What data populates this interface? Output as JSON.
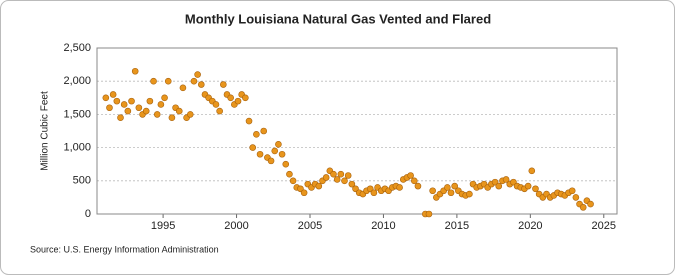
{
  "chart_data": {
    "type": "scatter",
    "title": "Monthly Louisiana Natural Gas Vented and Flared",
    "y_label": "Million Cubic Feet",
    "source": "Source: U.S. Energy Information Administration",
    "color": "#e8951c",
    "grid": true,
    "xlim": [
      1990.5,
      2025.9
    ],
    "xticks": [
      1995,
      2000,
      2005,
      2010,
      2015,
      2020,
      2025
    ],
    "ylim": [
      0,
      2500
    ],
    "yticks": [
      0,
      500,
      {
        "value": 1000,
        "label": "1,000"
      },
      {
        "value": 1500,
        "label": "1,500"
      },
      {
        "value": 2000,
        "label": "2,000"
      },
      {
        "value": 2500,
        "label": "2,500"
      }
    ],
    "x": [
      1991.1,
      1991.35,
      1991.6,
      1991.85,
      1992.1,
      1992.35,
      1992.6,
      1992.85,
      1993.1,
      1993.35,
      1993.6,
      1993.85,
      1994.1,
      1994.35,
      1994.6,
      1994.85,
      1995.1,
      1995.35,
      1995.6,
      1995.85,
      1996.1,
      1996.35,
      1996.6,
      1996.85,
      1997.1,
      1997.35,
      1997.6,
      1997.85,
      1998.1,
      1998.35,
      1998.6,
      1998.85,
      1999.1,
      1999.35,
      1999.6,
      1999.85,
      2000.1,
      2000.35,
      2000.6,
      2000.85,
      2001.1,
      2001.35,
      2001.6,
      2001.85,
      2002.1,
      2002.35,
      2002.6,
      2002.85,
      2003.1,
      2003.35,
      2003.6,
      2003.85,
      2004.1,
      2004.35,
      2004.6,
      2004.85,
      2005.1,
      2005.35,
      2005.6,
      2005.85,
      2006.1,
      2006.35,
      2006.6,
      2006.85,
      2007.1,
      2007.35,
      2007.6,
      2007.85,
      2008.1,
      2008.35,
      2008.6,
      2008.85,
      2009.1,
      2009.35,
      2009.6,
      2009.85,
      2010.1,
      2010.35,
      2010.6,
      2010.85,
      2011.1,
      2011.35,
      2011.6,
      2011.85,
      2012.1,
      2012.35,
      2012.85,
      2013.1,
      2013.35,
      2013.6,
      2013.85,
      2014.1,
      2014.35,
      2014.6,
      2014.85,
      2015.1,
      2015.35,
      2015.6,
      2015.85,
      2016.1,
      2016.35,
      2016.6,
      2016.85,
      2017.1,
      2017.35,
      2017.6,
      2017.85,
      2018.1,
      2018.35,
      2018.6,
      2018.85,
      2019.1,
      2019.35,
      2019.6,
      2019.85,
      2020.1,
      2020.35,
      2020.6,
      2020.85,
      2021.1,
      2021.35,
      2021.6,
      2021.85,
      2022.1,
      2022.35,
      2022.6,
      2022.85,
      2023.1,
      2023.35,
      2023.6,
      2023.85,
      2024.1
    ],
    "values": [
      1750,
      1600,
      1800,
      1700,
      1450,
      1650,
      1550,
      1700,
      2150,
      1600,
      1500,
      1550,
      1700,
      2000,
      1500,
      1650,
      1750,
      2000,
      1450,
      1600,
      1550,
      1900,
      1450,
      1500,
      2000,
      2100,
      1950,
      1800,
      1750,
      1700,
      1650,
      1550,
      1950,
      1800,
      1750,
      1650,
      1700,
      1800,
      1750,
      1400,
      1000,
      1200,
      900,
      1250,
      850,
      800,
      950,
      1050,
      900,
      750,
      600,
      500,
      400,
      380,
      320,
      450,
      400,
      450,
      420,
      500,
      550,
      650,
      600,
      520,
      600,
      500,
      580,
      450,
      380,
      320,
      300,
      350,
      380,
      320,
      400,
      350,
      380,
      350,
      400,
      420,
      400,
      520,
      550,
      580,
      500,
      420,
      0,
      0,
      350,
      250,
      300,
      350,
      400,
      320,
      420,
      350,
      300,
      280,
      300,
      450,
      400,
      420,
      450,
      400,
      450,
      480,
      420,
      500,
      520,
      450,
      480,
      420,
      400,
      380,
      420,
      650,
      380,
      300,
      250,
      300,
      250,
      280,
      320,
      300,
      280,
      320,
      350,
      250,
      150,
      100,
      200,
      150
    ]
  }
}
